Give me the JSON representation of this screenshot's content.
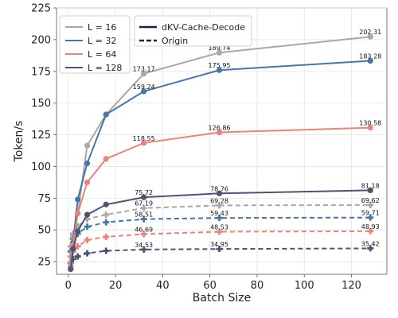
{
  "chart_data": {
    "type": "line",
    "xlabel": "Batch Size",
    "ylabel": "Token/s",
    "xlim": [
      -5,
      135
    ],
    "ylim": [
      15,
      225
    ],
    "xticks": [
      0,
      20,
      40,
      60,
      80,
      100,
      120
    ],
    "yticks": [
      25,
      50,
      75,
      100,
      125,
      150,
      175,
      200,
      225
    ],
    "grid": true,
    "x": [
      1,
      2,
      4,
      8,
      16,
      32,
      64,
      128
    ],
    "legend_placement": "top-left",
    "length_legend": [
      {
        "label": "L = 16",
        "color": "#a8a8a8"
      },
      {
        "label": "L = 32",
        "color": "#4376ad"
      },
      {
        "label": "L = 64",
        "color": "#ee8277"
      },
      {
        "label": "L = 128",
        "color": "#4a5574"
      }
    ],
    "style_legend": [
      {
        "label": "dKV-Cache-Decode",
        "style": "solid"
      },
      {
        "label": "Origin",
        "style": "dashed"
      }
    ],
    "series": [
      {
        "length": "L = 16",
        "method": "dKV-Cache-Decode",
        "color": "#a8a8a8",
        "dash": false,
        "marker": "circle",
        "values": [
          23.0,
          45.0,
          63.0,
          116.5,
          141.0,
          173.17,
          189.74,
          202.31
        ]
      },
      {
        "length": "L = 32",
        "method": "dKV-Cache-Decode",
        "color": "#4376ad",
        "dash": false,
        "marker": "circle",
        "values": [
          21.0,
          40.0,
          74.0,
          102.5,
          141.0,
          159.24,
          175.95,
          183.28
        ]
      },
      {
        "length": "L = 64",
        "method": "dKV-Cache-Decode",
        "color": "#ee8277",
        "dash": false,
        "marker": "circle",
        "values": [
          21.0,
          38.0,
          63.0,
          87.5,
          106.0,
          118.55,
          126.86,
          130.58
        ]
      },
      {
        "length": "L = 128",
        "method": "dKV-Cache-Decode",
        "color": "#4a5574",
        "dash": false,
        "marker": "circle",
        "values": [
          19.0,
          35.0,
          49.0,
          62.0,
          70.0,
          75.72,
          78.76,
          81.18
        ]
      },
      {
        "length": "L = 16",
        "method": "Origin",
        "color": "#a8a8a8",
        "dash": true,
        "marker": "plus",
        "values": [
          37.0,
          47.0,
          53.0,
          58.5,
          62.0,
          67.19,
          69.28,
          69.62
        ]
      },
      {
        "length": "L = 32",
        "method": "Origin",
        "color": "#4376ad",
        "dash": true,
        "marker": "plus",
        "values": [
          33.0,
          43.0,
          47.0,
          52.5,
          56.0,
          58.51,
          59.43,
          59.71
        ]
      },
      {
        "length": "L = 64",
        "method": "Origin",
        "color": "#ee8277",
        "dash": true,
        "marker": "plus",
        "values": [
          29.0,
          33.0,
          37.0,
          42.0,
          44.5,
          46.69,
          48.53,
          48.93
        ]
      },
      {
        "length": "L = 128",
        "method": "Origin",
        "color": "#4a5574",
        "dash": true,
        "marker": "plus",
        "values": [
          24.0,
          27.0,
          29.0,
          31.5,
          33.5,
          34.53,
          34.95,
          35.42
        ]
      }
    ],
    "annotations": [
      {
        "x": 32,
        "y": 173.17,
        "text": "173.17"
      },
      {
        "x": 64,
        "y": 189.74,
        "text": "189.74"
      },
      {
        "x": 128,
        "y": 202.31,
        "text": "202.31"
      },
      {
        "x": 32,
        "y": 159.24,
        "text": "159.24"
      },
      {
        "x": 64,
        "y": 175.95,
        "text": "175.95"
      },
      {
        "x": 128,
        "y": 183.28,
        "text": "183.28"
      },
      {
        "x": 32,
        "y": 118.55,
        "text": "118.55"
      },
      {
        "x": 64,
        "y": 126.86,
        "text": "126.86"
      },
      {
        "x": 128,
        "y": 130.58,
        "text": "130.58"
      },
      {
        "x": 32,
        "y": 75.72,
        "text": "75.72"
      },
      {
        "x": 64,
        "y": 78.76,
        "text": "78.76"
      },
      {
        "x": 128,
        "y": 81.18,
        "text": "81.18"
      },
      {
        "x": 32,
        "y": 67.19,
        "text": "67.19"
      },
      {
        "x": 64,
        "y": 69.28,
        "text": "69.28"
      },
      {
        "x": 128,
        "y": 69.62,
        "text": "69.62"
      },
      {
        "x": 32,
        "y": 58.51,
        "text": "58.51"
      },
      {
        "x": 64,
        "y": 59.43,
        "text": "59.43"
      },
      {
        "x": 128,
        "y": 59.71,
        "text": "59.71"
      },
      {
        "x": 32,
        "y": 46.69,
        "text": "46.69"
      },
      {
        "x": 64,
        "y": 48.53,
        "text": "48.53"
      },
      {
        "x": 128,
        "y": 48.93,
        "text": "48.93"
      },
      {
        "x": 32,
        "y": 34.53,
        "text": "34.53"
      },
      {
        "x": 64,
        "y": 34.95,
        "text": "34.95"
      },
      {
        "x": 128,
        "y": 35.42,
        "text": "35.42"
      }
    ]
  }
}
